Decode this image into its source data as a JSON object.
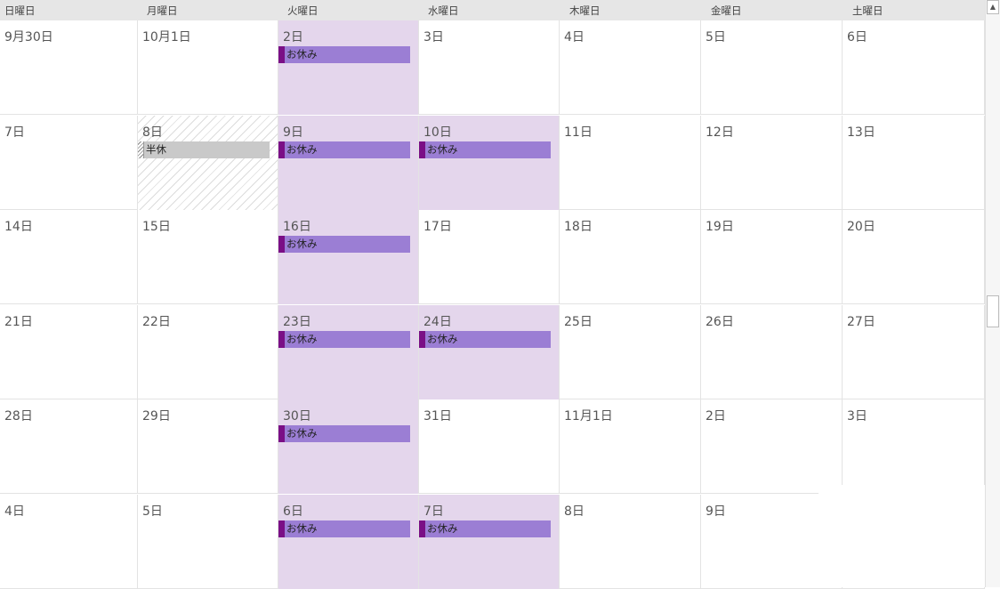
{
  "headers": [
    "日曜日",
    "月曜日",
    "火曜日",
    "水曜日",
    "木曜日",
    "金曜日",
    "土曜日"
  ],
  "weeks": [
    {
      "days": [
        {
          "label": "9月30日"
        },
        {
          "label": "10月1日"
        },
        {
          "label": "2日",
          "bg": "purple",
          "event": {
            "text": "お休み",
            "kind": "leave"
          }
        },
        {
          "label": "3日"
        },
        {
          "label": "4日"
        },
        {
          "label": "5日"
        },
        {
          "label": "6日"
        }
      ]
    },
    {
      "days": [
        {
          "label": "7日"
        },
        {
          "label": "8日",
          "bg": "hatch",
          "event": {
            "text": "半休",
            "kind": "half"
          }
        },
        {
          "label": "9日",
          "bg": "purple",
          "event": {
            "text": "お休み",
            "kind": "leave"
          }
        },
        {
          "label": "10日",
          "bg": "purple",
          "event": {
            "text": "お休み",
            "kind": "leave"
          }
        },
        {
          "label": "11日"
        },
        {
          "label": "12日"
        },
        {
          "label": "13日"
        }
      ]
    },
    {
      "days": [
        {
          "label": "14日"
        },
        {
          "label": "15日"
        },
        {
          "label": "16日",
          "bg": "purple",
          "event": {
            "text": "お休み",
            "kind": "leave"
          }
        },
        {
          "label": "17日"
        },
        {
          "label": "18日"
        },
        {
          "label": "19日"
        },
        {
          "label": "20日"
        }
      ]
    },
    {
      "days": [
        {
          "label": "21日"
        },
        {
          "label": "22日"
        },
        {
          "label": "23日",
          "bg": "purple",
          "event": {
            "text": "お休み",
            "kind": "leave"
          }
        },
        {
          "label": "24日",
          "bg": "purple",
          "event": {
            "text": "お休み",
            "kind": "leave"
          }
        },
        {
          "label": "25日"
        },
        {
          "label": "26日"
        },
        {
          "label": "27日"
        }
      ]
    },
    {
      "days": [
        {
          "label": "28日"
        },
        {
          "label": "29日"
        },
        {
          "label": "30日",
          "bg": "purple",
          "event": {
            "text": "お休み",
            "kind": "leave"
          }
        },
        {
          "label": "31日"
        },
        {
          "label": "11月1日"
        },
        {
          "label": "2日"
        },
        {
          "label": "3日"
        }
      ]
    },
    {
      "days": [
        {
          "label": "4日"
        },
        {
          "label": "5日"
        },
        {
          "label": "6日",
          "bg": "purple",
          "event": {
            "text": "お休み",
            "kind": "leave"
          }
        },
        {
          "label": "7日",
          "bg": "purple",
          "event": {
            "text": "お休み",
            "kind": "leave"
          }
        },
        {
          "label": "8日"
        },
        {
          "label": "9日"
        },
        {
          "label": ""
        }
      ]
    }
  ],
  "colors": {
    "leave_bar": "#9b7ed4",
    "leave_marker": "#7a0f86",
    "leave_cell_bg": "#e4d6ec",
    "half_bar": "#c9c9c9"
  },
  "scrollbar": {
    "up_arrow_icon": "triangle-up-icon",
    "up_arrow_glyph": "▲"
  }
}
